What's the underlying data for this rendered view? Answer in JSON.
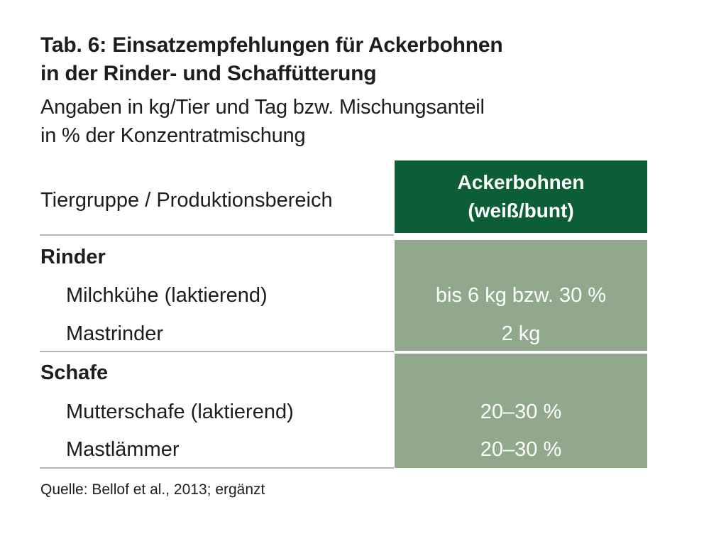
{
  "title": {
    "line1": "Tab. 6: Einsatzempfehlungen für Ackerbohnen",
    "line2": "in der Rinder- und Schaffütterung"
  },
  "subtitle": {
    "line1": "Angaben in kg/Tier und Tag bzw. Mischungsanteil",
    "line2": "in % der Konzentratmischung"
  },
  "table": {
    "header_left": "Tiergruppe / Produktionsbereich",
    "header_right_line1": "Ackerbohnen",
    "header_right_line2": "(weiß/bunt)",
    "groups": [
      {
        "name": "Rinder",
        "rows": [
          {
            "label": "Milchkühe (laktierend)",
            "value": "bis 6 kg bzw. 30 %"
          },
          {
            "label": "Mastrinder",
            "value": "2 kg"
          }
        ]
      },
      {
        "name": "Schafe",
        "rows": [
          {
            "label": "Mutterschafe (laktierend)",
            "value": "20–30 %"
          },
          {
            "label": "Mastlämmer",
            "value": "20–30 %"
          }
        ]
      }
    ]
  },
  "source": "Quelle: Bellof et al., 2013; ergänzt",
  "colors": {
    "header_green": "#0c5e36",
    "cell_green": "#91a88d",
    "divider_gray": "#b3b3b3"
  }
}
